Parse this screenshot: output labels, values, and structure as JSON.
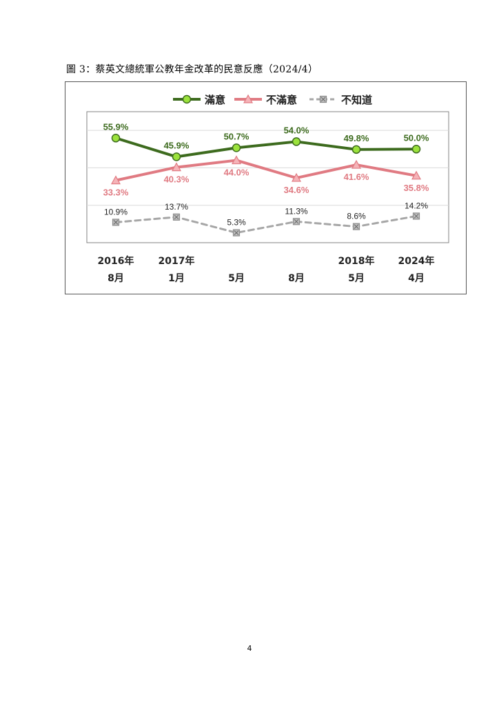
{
  "figure": {
    "title": "圖 3：蔡英文總統軍公教年金改革的民意反應（2024/4）"
  },
  "page_number": "4",
  "colors": {
    "satisfied": "#3d6b1e",
    "satisfied_marker": "#9be23c",
    "dissatisfied": "#e07a82",
    "dissatisfied_marker": "#f5b3b8",
    "unknown": "#a6a6a6",
    "unknown_marker": "#8c8c8c",
    "gridline": "#d9d9d9",
    "plot_border": "#808080"
  },
  "chart_data": {
    "type": "line",
    "title": "",
    "xlabel": "",
    "ylabel": "",
    "ylim": [
      0,
      70
    ],
    "grid": true,
    "legend_position": "top",
    "categories": [
      [
        "2016年",
        "8月"
      ],
      [
        "2017年",
        "1月"
      ],
      [
        "",
        "5月"
      ],
      [
        "",
        "8月"
      ],
      [
        "2018年",
        "5月"
      ],
      [
        "2024年",
        "4月"
      ]
    ],
    "series": [
      {
        "name": "滿意",
        "color_key": "satisfied",
        "marker": "circle",
        "dashed": false,
        "values": [
          55.9,
          45.9,
          50.7,
          54.0,
          49.8,
          50.0
        ],
        "labels": [
          "55.9%",
          "45.9%",
          "50.7%",
          "54.0%",
          "49.8%",
          "50.0%"
        ],
        "label_position": "above"
      },
      {
        "name": "不滿意",
        "color_key": "dissatisfied",
        "marker": "triangle",
        "dashed": false,
        "values": [
          33.3,
          40.3,
          44.0,
          34.6,
          41.6,
          35.8
        ],
        "labels": [
          "33.3%",
          "40.3%",
          "44.0%",
          "34.6%",
          "41.6%",
          "35.8%"
        ],
        "label_position": "below"
      },
      {
        "name": "不知道",
        "color_key": "unknown",
        "marker": "square-x",
        "dashed": true,
        "values": [
          10.9,
          13.7,
          5.3,
          11.3,
          8.6,
          14.2
        ],
        "labels": [
          "10.9%",
          "13.7%",
          "5.3%",
          "11.3%",
          "8.6%",
          "14.2%"
        ],
        "label_position": "above"
      }
    ]
  }
}
